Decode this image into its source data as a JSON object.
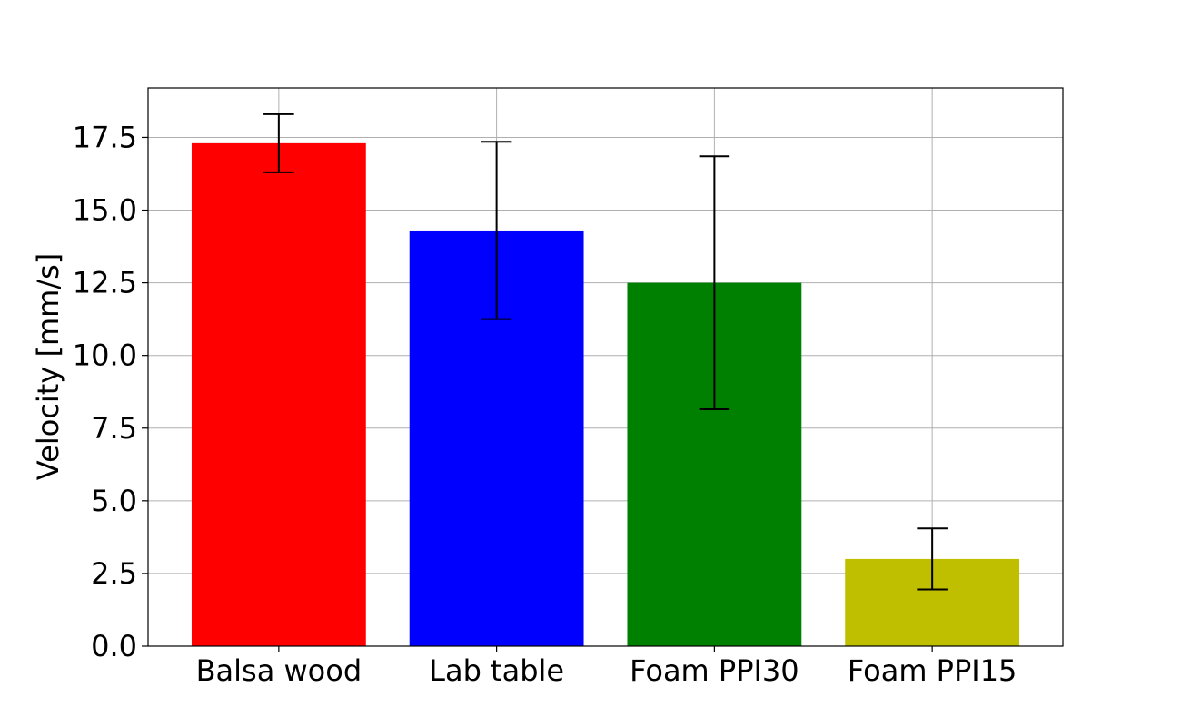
{
  "chart_data": {
    "type": "bar",
    "title": "",
    "xlabel": "",
    "ylabel": "Velocity [mm/s]",
    "categories": [
      "Balsa wood",
      "Lab table",
      "Foam PPI30",
      "Foam PPI15"
    ],
    "values": [
      17.3,
      14.3,
      12.5,
      3.0
    ],
    "errors": [
      1.0,
      3.05,
      4.35,
      1.05
    ],
    "colors": [
      "#ff0000",
      "#0000ff",
      "#008000",
      "#bfbf00"
    ],
    "ylim": [
      0,
      19.2
    ],
    "yticks": [
      0.0,
      2.5,
      5.0,
      7.5,
      10.0,
      12.5,
      15.0,
      17.5
    ],
    "ytick_labels": [
      "0.0",
      "2.5",
      "5.0",
      "7.5",
      "10.0",
      "12.5",
      "15.0",
      "17.5"
    ],
    "grid": true,
    "legend": "none"
  }
}
